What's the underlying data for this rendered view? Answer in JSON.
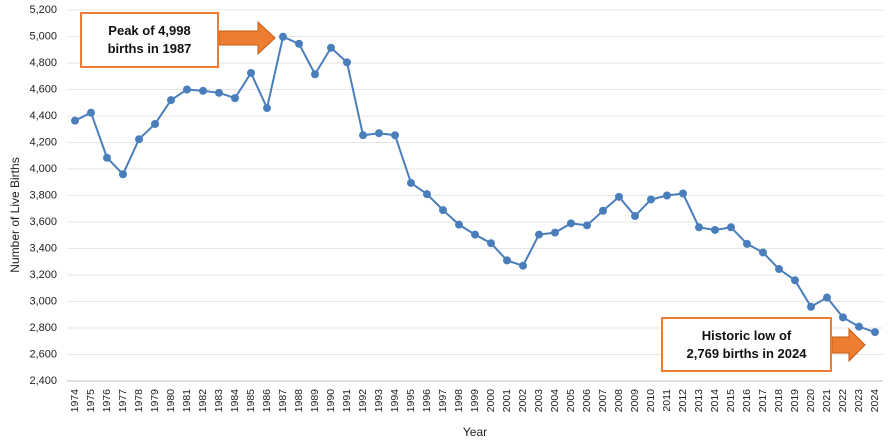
{
  "chart_data": {
    "type": "line",
    "title": "",
    "xlabel": "Year",
    "ylabel": "Number of Live Births",
    "ylim": [
      2400,
      5200
    ],
    "yticks": [
      "2,400",
      "2,600",
      "2,800",
      "3,000",
      "3,200",
      "3,400",
      "3,600",
      "3,800",
      "4,000",
      "4,200",
      "4,400",
      "4,600",
      "4,800",
      "5,000",
      "5,200"
    ],
    "ytick_values": [
      2400,
      2600,
      2800,
      3000,
      3200,
      3400,
      3600,
      3800,
      4000,
      4200,
      4400,
      4600,
      4800,
      5000,
      5200
    ],
    "categories": [
      "1974",
      "1975",
      "1976",
      "1977",
      "1978",
      "1979",
      "1980",
      "1981",
      "1982",
      "1983",
      "1984",
      "1985",
      "1986",
      "1987",
      "1988",
      "1989",
      "1990",
      "1991",
      "1992",
      "1993",
      "1994",
      "1995",
      "1996",
      "1997",
      "1998",
      "1999",
      "2000",
      "2001",
      "2002",
      "2003",
      "2004",
      "2005",
      "2006",
      "2007",
      "2008",
      "2009",
      "2010",
      "2011",
      "2012",
      "2013",
      "2014",
      "2015",
      "2016",
      "2017",
      "2018",
      "2019",
      "2020",
      "2021",
      "2022",
      "2023",
      "2024"
    ],
    "series": [
      {
        "values": [
          4365,
          4425,
          4085,
          3960,
          4225,
          4340,
          4520,
          4600,
          4590,
          4575,
          4535,
          4725,
          4460,
          4998,
          4945,
          4715,
          4915,
          4805,
          4255,
          4270,
          4255,
          3895,
          3810,
          3690,
          3580,
          3505,
          3440,
          3310,
          3270,
          3505,
          3520,
          3590,
          3575,
          3685,
          3790,
          3645,
          3770,
          3800,
          3815,
          3560,
          3540,
          3560,
          3435,
          3370,
          3245,
          3160,
          2960,
          3030,
          2880,
          2810,
          2769
        ],
        "color": "#4A7EBB"
      }
    ],
    "grid": true,
    "annotations": [
      {
        "lines": [
          "Peak of 4,998",
          "births in 1987"
        ],
        "points_to": "1987"
      },
      {
        "lines": [
          "Historic low of",
          "2,769 births in 2024"
        ],
        "points_to": "2024"
      }
    ]
  },
  "colors": {
    "line": "#4A7EBB",
    "callout_border": "#ED7D31",
    "arrow_fill": "#ED7D31",
    "grid": "#E6E6E6"
  }
}
